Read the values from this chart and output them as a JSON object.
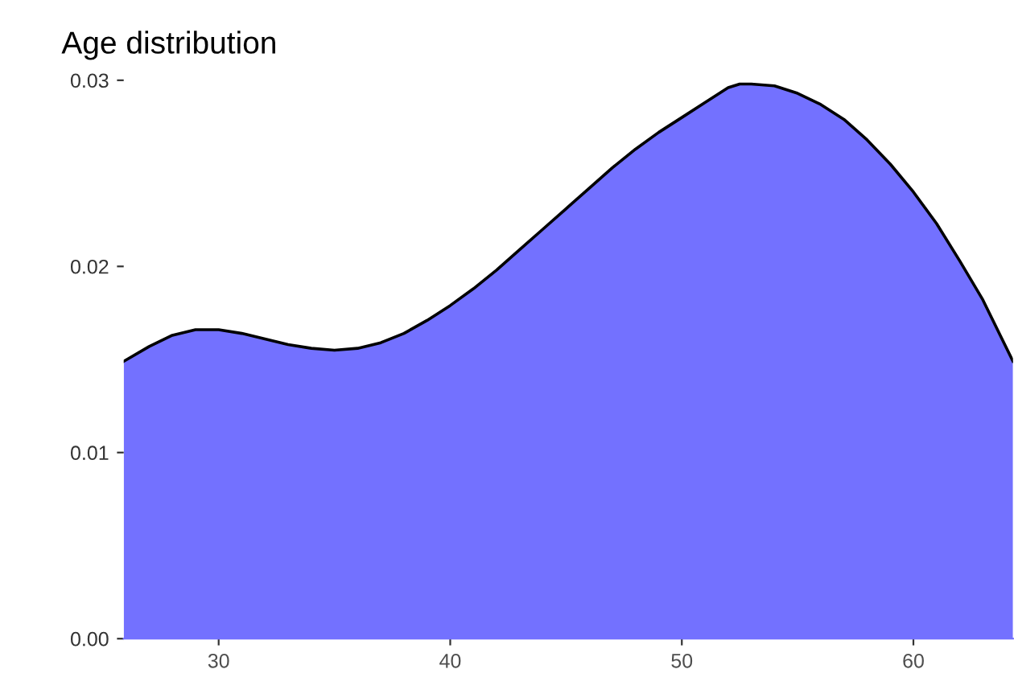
{
  "chart_data": {
    "type": "area",
    "title": "Age distribution",
    "x": [
      25.9,
      27,
      28,
      29,
      30,
      31,
      32,
      33,
      34,
      35,
      36,
      37,
      38,
      39,
      40,
      41,
      42,
      43,
      44,
      45,
      46,
      47,
      48,
      49,
      50,
      51,
      52,
      52.5,
      53,
      54,
      55,
      56,
      57,
      58,
      59,
      60,
      61,
      62,
      63,
      64.3
    ],
    "series": [
      {
        "color": "#7371ff",
        "values": [
          0.0149,
          0.0157,
          0.0163,
          0.0166,
          0.0166,
          0.0164,
          0.0161,
          0.0158,
          0.0156,
          0.0155,
          0.0156,
          0.0159,
          0.0164,
          0.0171,
          0.0179,
          0.0188,
          0.0198,
          0.0209,
          0.022,
          0.0231,
          0.0242,
          0.0253,
          0.0263,
          0.0272,
          0.028,
          0.0288,
          0.0296,
          0.0298,
          0.0298,
          0.0297,
          0.0293,
          0.0287,
          0.0279,
          0.0268,
          0.0255,
          0.024,
          0.0223,
          0.0203,
          0.0182,
          0.0149
        ]
      }
    ],
    "xlim": [
      25.9,
      64.3
    ],
    "xticks": [
      30,
      40,
      50,
      60
    ],
    "ylim": [
      0,
      0.03
    ],
    "yticks": [
      {
        "value": 0,
        "label": "0.00"
      },
      {
        "value": 0.01,
        "label": "0.01"
      },
      {
        "value": 0.02,
        "label": "0.02"
      },
      {
        "value": 0.03,
        "label": "0.03"
      }
    ],
    "grid": false,
    "legend": false
  }
}
